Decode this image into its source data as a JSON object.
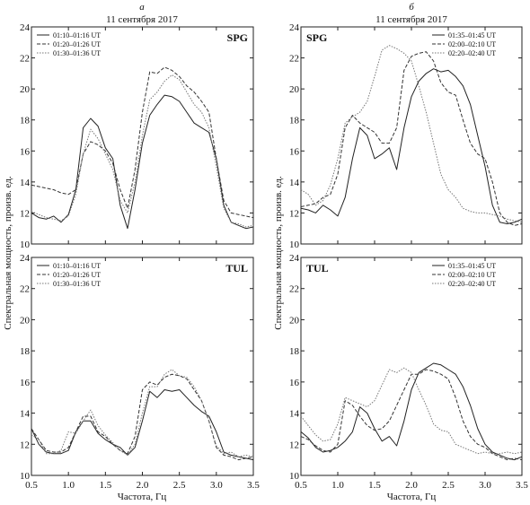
{
  "columns": [
    {
      "letter": "а",
      "date": "11 сентября 2017"
    },
    {
      "letter": "б",
      "date": "11 сентября 2017"
    }
  ],
  "xlabel": "Частота, Гц",
  "ylabel": "Спектральная мощность, произв. ед.",
  "chart_data": [
    {
      "type": "line",
      "panel": "а",
      "station": "SPG",
      "xlim": [
        0.5,
        3.5
      ],
      "ylim": [
        10,
        24
      ],
      "xticks": [
        0.5,
        1.0,
        1.5,
        2.0,
        2.5,
        3.0,
        3.5
      ],
      "yticks": [
        10,
        12,
        14,
        16,
        18,
        20,
        22,
        24
      ],
      "legend_position": "top-left",
      "series": [
        {
          "name": "01:10–01:16 UT",
          "style": "solid",
          "color": "#222222",
          "x": [
            0.5,
            0.6,
            0.7,
            0.8,
            0.9,
            1.0,
            1.1,
            1.2,
            1.3,
            1.4,
            1.5,
            1.6,
            1.7,
            1.8,
            1.9,
            2.0,
            2.1,
            2.2,
            2.3,
            2.4,
            2.5,
            2.6,
            2.7,
            2.8,
            2.9,
            3.0,
            3.1,
            3.2,
            3.3,
            3.4,
            3.5
          ],
          "y": [
            12.0,
            11.7,
            11.6,
            11.8,
            11.4,
            11.9,
            13.5,
            17.5,
            18.1,
            17.6,
            16.2,
            15.5,
            12.5,
            11.0,
            13.5,
            16.5,
            18.3,
            19.0,
            19.6,
            19.5,
            19.2,
            18.5,
            17.8,
            17.5,
            17.2,
            15.5,
            12.5,
            11.4,
            11.2,
            11.0,
            11.1
          ]
        },
        {
          "name": "01:20–01:26 UT",
          "style": "dashed",
          "color": "#333333",
          "x": [
            0.5,
            0.6,
            0.7,
            0.8,
            0.9,
            1.0,
            1.1,
            1.2,
            1.3,
            1.4,
            1.5,
            1.6,
            1.7,
            1.8,
            1.9,
            2.0,
            2.1,
            2.2,
            2.3,
            2.4,
            2.5,
            2.6,
            2.7,
            2.8,
            2.9,
            3.0,
            3.1,
            3.2,
            3.3,
            3.4,
            3.5
          ],
          "y": [
            13.8,
            13.7,
            13.6,
            13.5,
            13.3,
            13.2,
            13.5,
            15.8,
            16.6,
            16.4,
            16.0,
            15.2,
            13.5,
            12.3,
            14.8,
            18.5,
            21.1,
            21.0,
            21.4,
            21.2,
            20.8,
            20.2,
            19.8,
            19.2,
            18.5,
            15.5,
            12.8,
            12.0,
            11.9,
            11.8,
            11.7
          ]
        },
        {
          "name": "01:30–01:36 UT",
          "style": "dotted",
          "color": "#777777",
          "x": [
            0.5,
            0.6,
            0.7,
            0.8,
            0.9,
            1.0,
            1.1,
            1.2,
            1.3,
            1.4,
            1.5,
            1.6,
            1.7,
            1.8,
            1.9,
            2.0,
            2.1,
            2.2,
            2.3,
            2.4,
            2.5,
            2.6,
            2.7,
            2.8,
            2.9,
            3.0,
            3.1,
            3.2,
            3.3,
            3.4,
            3.5
          ],
          "y": [
            12.1,
            11.9,
            11.7,
            11.6,
            11.5,
            11.8,
            13.2,
            15.8,
            17.4,
            16.8,
            15.8,
            14.8,
            12.8,
            12.0,
            14.0,
            17.0,
            19.3,
            19.8,
            20.5,
            20.9,
            20.6,
            19.8,
            19.0,
            18.5,
            17.5,
            15.0,
            12.3,
            11.4,
            11.3,
            11.1,
            11.2
          ]
        }
      ]
    },
    {
      "type": "line",
      "panel": "б",
      "station": "SPG",
      "xlim": [
        0.5,
        3.5
      ],
      "ylim": [
        10,
        24
      ],
      "xticks": [
        0.5,
        1.0,
        1.5,
        2.0,
        2.5,
        3.0,
        3.5
      ],
      "yticks": [
        10,
        12,
        14,
        16,
        18,
        20,
        22,
        24
      ],
      "legend_position": "top-right",
      "series": [
        {
          "name": "01:35–01:45 UT",
          "style": "solid",
          "color": "#222222",
          "x": [
            0.5,
            0.6,
            0.7,
            0.8,
            0.9,
            1.0,
            1.1,
            1.2,
            1.3,
            1.4,
            1.5,
            1.6,
            1.7,
            1.8,
            1.9,
            2.0,
            2.1,
            2.2,
            2.3,
            2.4,
            2.5,
            2.6,
            2.7,
            2.8,
            2.9,
            3.0,
            3.1,
            3.2,
            3.3,
            3.4,
            3.5
          ],
          "y": [
            12.3,
            12.2,
            12.0,
            12.5,
            12.2,
            11.8,
            13.0,
            15.5,
            17.5,
            17.0,
            15.5,
            15.8,
            16.2,
            14.8,
            17.5,
            19.5,
            20.5,
            21.0,
            21.3,
            21.1,
            21.2,
            20.8,
            20.2,
            19.0,
            17.0,
            15.0,
            12.5,
            11.4,
            11.3,
            11.4,
            11.6
          ]
        },
        {
          "name": "02:00–02:10 UT",
          "style": "dashed",
          "color": "#333333",
          "x": [
            0.5,
            0.6,
            0.7,
            0.8,
            0.9,
            1.0,
            1.1,
            1.2,
            1.3,
            1.4,
            1.5,
            1.6,
            1.7,
            1.8,
            1.9,
            2.0,
            2.1,
            2.2,
            2.3,
            2.4,
            2.5,
            2.6,
            2.7,
            2.8,
            2.9,
            3.0,
            3.1,
            3.2,
            3.3,
            3.4,
            3.5
          ],
          "y": [
            12.4,
            12.5,
            12.6,
            13.0,
            13.2,
            14.5,
            17.5,
            18.3,
            17.8,
            17.5,
            17.2,
            16.5,
            16.5,
            17.5,
            21.2,
            22.1,
            22.3,
            22.4,
            21.8,
            20.4,
            19.8,
            19.6,
            18.0,
            16.5,
            15.8,
            15.5,
            14.0,
            12.0,
            11.4,
            11.2,
            11.3
          ]
        },
        {
          "name": "02:20–02:40 UT",
          "style": "dotted",
          "color": "#777777",
          "x": [
            0.5,
            0.6,
            0.7,
            0.8,
            0.9,
            1.0,
            1.1,
            1.2,
            1.3,
            1.4,
            1.5,
            1.6,
            1.7,
            1.8,
            1.9,
            2.0,
            2.1,
            2.2,
            2.3,
            2.4,
            2.5,
            2.6,
            2.7,
            2.8,
            2.9,
            3.0,
            3.1,
            3.2,
            3.3,
            3.4,
            3.5
          ],
          "y": [
            13.5,
            13.2,
            12.5,
            12.8,
            13.8,
            15.5,
            17.8,
            18.2,
            18.5,
            19.2,
            20.8,
            22.5,
            22.8,
            22.6,
            22.3,
            21.8,
            20.2,
            18.5,
            16.5,
            14.5,
            13.5,
            13.0,
            12.3,
            12.1,
            12.0,
            12.0,
            11.9,
            11.8,
            11.6,
            11.5,
            11.4
          ]
        }
      ]
    },
    {
      "type": "line",
      "panel": "а",
      "station": "TUL",
      "xlim": [
        0.5,
        3.5
      ],
      "ylim": [
        10,
        24
      ],
      "xticks": [
        0.5,
        1.0,
        1.5,
        2.0,
        2.5,
        3.0,
        3.5
      ],
      "yticks": [
        10,
        12,
        14,
        16,
        18,
        20,
        22,
        24
      ],
      "legend_position": "top-left",
      "series": [
        {
          "name": "01:10–01:16 UT",
          "style": "solid",
          "color": "#222222",
          "x": [
            0.5,
            0.6,
            0.7,
            0.8,
            0.9,
            1.0,
            1.1,
            1.2,
            1.3,
            1.4,
            1.5,
            1.6,
            1.7,
            1.8,
            1.9,
            2.0,
            2.1,
            2.2,
            2.3,
            2.4,
            2.5,
            2.6,
            2.7,
            2.8,
            2.9,
            3.0,
            3.1,
            3.2,
            3.3,
            3.4,
            3.5
          ],
          "y": [
            13.0,
            12.0,
            11.5,
            11.4,
            11.4,
            11.6,
            12.8,
            13.5,
            13.5,
            12.7,
            12.3,
            12.0,
            11.8,
            11.3,
            11.8,
            13.5,
            15.4,
            15.0,
            15.5,
            15.4,
            15.5,
            15.0,
            14.5,
            14.1,
            13.8,
            12.8,
            11.5,
            11.3,
            11.2,
            11.1,
            11.0
          ]
        },
        {
          "name": "01:20–01:26 UT",
          "style": "dashed",
          "color": "#333333",
          "x": [
            0.5,
            0.6,
            0.7,
            0.8,
            0.9,
            1.0,
            1.1,
            1.2,
            1.3,
            1.4,
            1.5,
            1.6,
            1.7,
            1.8,
            1.9,
            2.0,
            2.1,
            2.2,
            2.3,
            2.4,
            2.5,
            2.6,
            2.7,
            2.8,
            2.9,
            3.0,
            3.1,
            3.2,
            3.3,
            3.4,
            3.5
          ],
          "y": [
            13.0,
            12.3,
            11.6,
            11.5,
            11.5,
            11.8,
            12.8,
            13.8,
            13.8,
            12.8,
            12.5,
            12.0,
            11.6,
            11.4,
            12.5,
            15.5,
            16.0,
            15.8,
            16.3,
            16.5,
            16.4,
            16.2,
            15.5,
            14.8,
            13.5,
            11.8,
            11.3,
            11.2,
            11.0,
            11.1,
            11.2
          ]
        },
        {
          "name": "01:30–01:36 UT",
          "style": "dotted",
          "color": "#777777",
          "x": [
            0.5,
            0.6,
            0.7,
            0.8,
            0.9,
            1.0,
            1.1,
            1.2,
            1.3,
            1.4,
            1.5,
            1.6,
            1.7,
            1.8,
            1.9,
            2.0,
            2.1,
            2.2,
            2.3,
            2.4,
            2.5,
            2.6,
            2.7,
            2.8,
            2.9,
            3.0,
            3.1,
            3.2,
            3.3,
            3.4,
            3.5
          ],
          "y": [
            12.6,
            12.3,
            11.4,
            11.4,
            11.6,
            12.8,
            12.7,
            13.5,
            14.2,
            13.2,
            12.6,
            12.1,
            11.6,
            11.3,
            12.0,
            14.0,
            15.7,
            15.7,
            16.5,
            16.8,
            16.4,
            16.3,
            15.7,
            14.8,
            13.5,
            11.9,
            11.4,
            11.5,
            11.2,
            11.3,
            11.2
          ]
        }
      ]
    },
    {
      "type": "line",
      "panel": "б",
      "station": "TUL",
      "xlim": [
        0.5,
        3.5
      ],
      "ylim": [
        10,
        24
      ],
      "xticks": [
        0.5,
        1.0,
        1.5,
        2.0,
        2.5,
        3.0,
        3.5
      ],
      "yticks": [
        10,
        12,
        14,
        16,
        18,
        20,
        22,
        24
      ],
      "legend_position": "top-right",
      "series": [
        {
          "name": "01:35–01:45 UT",
          "style": "solid",
          "color": "#222222",
          "x": [
            0.5,
            0.6,
            0.7,
            0.8,
            0.9,
            1.0,
            1.1,
            1.2,
            1.3,
            1.4,
            1.5,
            1.6,
            1.7,
            1.8,
            1.9,
            2.0,
            2.1,
            2.2,
            2.3,
            2.4,
            2.5,
            2.6,
            2.7,
            2.8,
            2.9,
            3.0,
            3.1,
            3.2,
            3.3,
            3.4,
            3.5
          ],
          "y": [
            12.8,
            12.4,
            11.8,
            11.5,
            11.6,
            11.8,
            12.2,
            12.8,
            14.4,
            14.0,
            13.0,
            12.2,
            12.5,
            11.9,
            13.5,
            15.5,
            16.6,
            16.9,
            17.2,
            17.1,
            16.8,
            16.5,
            15.7,
            14.5,
            13.0,
            12.0,
            11.5,
            11.3,
            11.1,
            11.0,
            11.2
          ]
        },
        {
          "name": "02:00–02:10 UT",
          "style": "dashed",
          "color": "#333333",
          "x": [
            0.5,
            0.6,
            0.7,
            0.8,
            0.9,
            1.0,
            1.1,
            1.2,
            1.3,
            1.4,
            1.5,
            1.6,
            1.7,
            1.8,
            1.9,
            2.0,
            2.1,
            2.2,
            2.3,
            2.4,
            2.5,
            2.6,
            2.7,
            2.8,
            2.9,
            3.0,
            3.1,
            3.2,
            3.3,
            3.4,
            3.5
          ],
          "y": [
            12.5,
            12.3,
            11.9,
            11.6,
            11.5,
            12.0,
            14.8,
            14.5,
            13.8,
            13.2,
            12.9,
            13.0,
            13.5,
            14.5,
            15.5,
            16.5,
            16.5,
            16.8,
            16.7,
            16.5,
            16.2,
            15.0,
            13.5,
            12.5,
            12.0,
            11.8,
            11.4,
            11.2,
            11.0,
            11.1,
            11.0
          ]
        },
        {
          "name": "02:20–02:40 UT",
          "style": "dotted",
          "color": "#777777",
          "x": [
            0.5,
            0.6,
            0.7,
            0.8,
            0.9,
            1.0,
            1.1,
            1.2,
            1.3,
            1.4,
            1.5,
            1.6,
            1.7,
            1.8,
            1.9,
            2.0,
            2.1,
            2.2,
            2.3,
            2.4,
            2.5,
            2.6,
            2.7,
            2.8,
            2.9,
            3.0,
            3.1,
            3.2,
            3.3,
            3.4,
            3.5
          ],
          "y": [
            13.8,
            13.2,
            12.6,
            12.2,
            12.3,
            13.3,
            15.0,
            14.8,
            14.6,
            14.4,
            14.8,
            15.8,
            16.8,
            16.6,
            16.9,
            16.6,
            15.5,
            14.5,
            13.3,
            12.9,
            12.8,
            12.0,
            11.8,
            11.6,
            11.4,
            11.5,
            11.4,
            11.4,
            11.5,
            11.4,
            11.5
          ]
        }
      ]
    }
  ]
}
